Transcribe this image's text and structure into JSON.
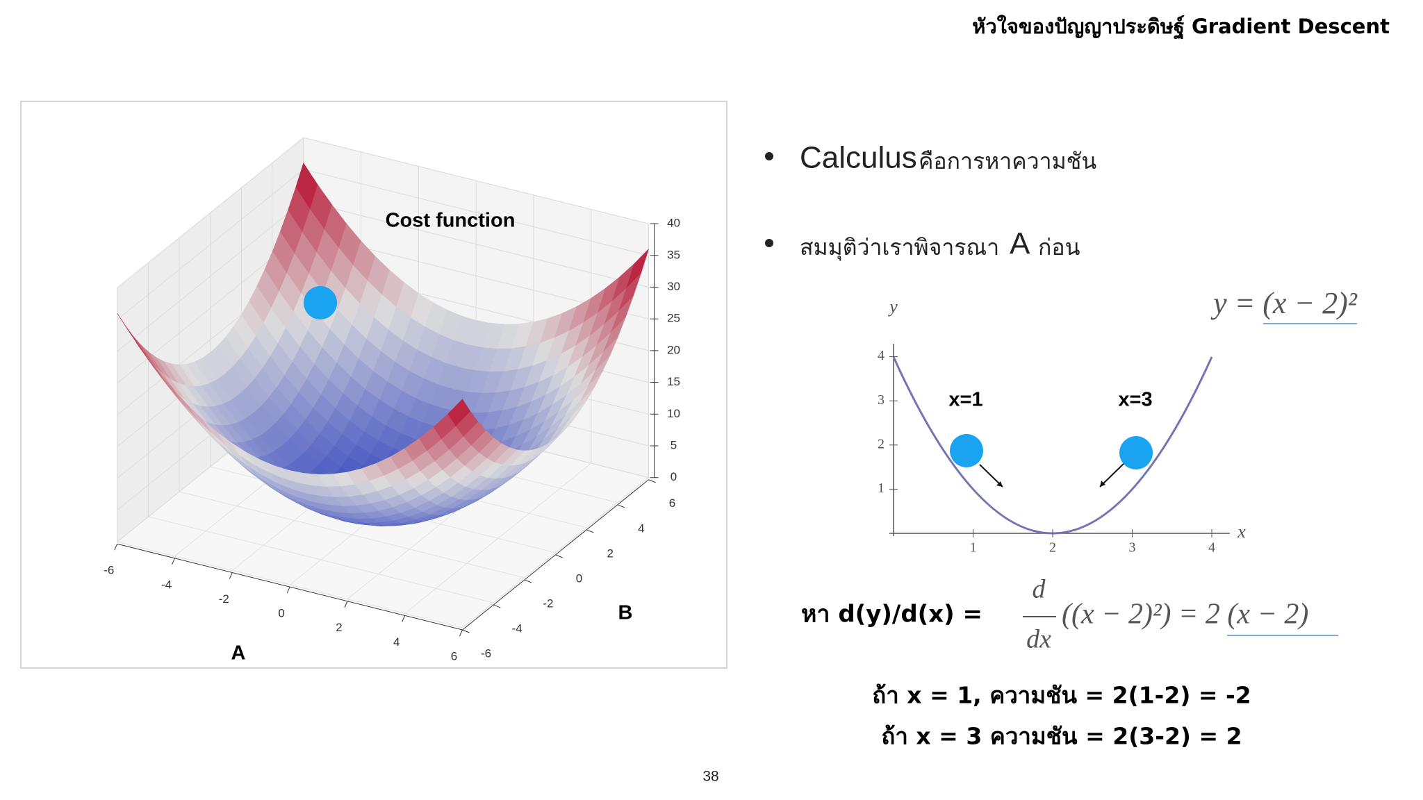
{
  "header": {
    "title": "หัวใจของปัญญาประดิษฐ์ Gradient Descent"
  },
  "surface_plot": {
    "annotation": "Cost function",
    "axis_a_label": "A",
    "axis_b_label": "B",
    "zticks": [
      0,
      5,
      10,
      15,
      20,
      25,
      30,
      35,
      40
    ],
    "aticks": [
      -6,
      -4,
      -2,
      0,
      2,
      4,
      6
    ],
    "bticks": [
      -6,
      -4,
      -2,
      0,
      2,
      4,
      6
    ]
  },
  "bullets": [
    {
      "term": "Calculus",
      "text": "คือการหาความชัน"
    },
    {
      "text": "สมมุติว่าเราพิจารณา",
      "term": "A",
      "after": "ก่อน"
    }
  ],
  "parabola_plot": {
    "x_label": "x",
    "y_label": "y",
    "xticks": [
      1,
      2,
      3,
      4
    ],
    "yticks": [
      1,
      2,
      3,
      4
    ],
    "equation": "y = (x − 2)²",
    "left_point_label": "x=1",
    "right_point_label": "x=3"
  },
  "derivative": {
    "prompt": "หา d(y)/d(x) =",
    "numerator": "d",
    "denominator": "dx",
    "rest": "((x − 2)²) = 2 (x − 2)"
  },
  "examples": [
    "ถ้า x = 1, ความชัน = 2(1-2) = -2",
    "ถ้า x = 3 ความชัน = 2(3-2) = 2"
  ],
  "page_number": "38"
}
